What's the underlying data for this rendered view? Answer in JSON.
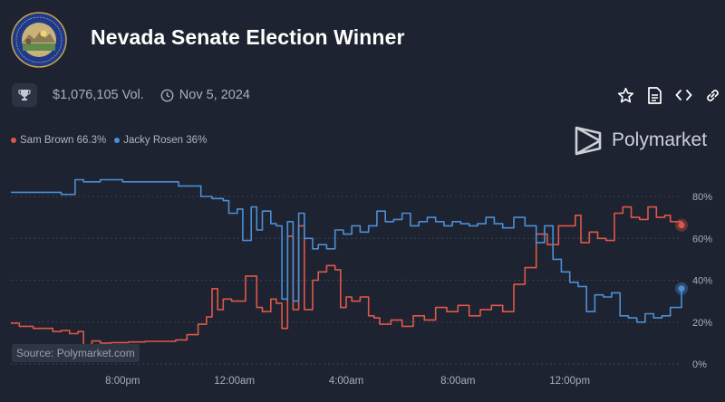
{
  "header": {
    "title": "Nevada Senate Election Winner",
    "seal_icon": "nevada-state-seal-icon",
    "volume": "$1,076,105 Vol.",
    "date": "Nov 5, 2024"
  },
  "actions": [
    {
      "name": "star-icon",
      "label": "Bookmark"
    },
    {
      "name": "document-icon",
      "label": "Rules"
    },
    {
      "name": "code-icon",
      "label": "Embed"
    },
    {
      "name": "link-icon",
      "label": "Copy link"
    }
  ],
  "brand": {
    "name": "Polymarket",
    "icon": "polymarket-logo-icon"
  },
  "source": "Source: Polymarket.com",
  "colors": {
    "background": "#1d2330",
    "red": "#e0574a",
    "blue": "#4c8fd6",
    "grid": "#3a4150",
    "axis_text": "#a9aebb"
  },
  "chart_data": {
    "type": "line",
    "title": "Nevada Senate Election Winner",
    "xlabel": "",
    "ylabel": "",
    "ylim": [
      0,
      80
    ],
    "yticks": [
      0,
      20,
      40,
      60,
      80
    ],
    "ytick_labels": [
      "0%",
      "20%",
      "40%",
      "60%",
      "80%"
    ],
    "xlim": [
      0,
      24
    ],
    "xticks": [
      4,
      8,
      12,
      16,
      20
    ],
    "xtick_labels": [
      "8:00pm",
      "12:00am",
      "4:00am",
      "8:00am",
      "12:00pm"
    ],
    "x_unit": "hours since 4:00pm",
    "series": [
      {
        "name": "Sam Brown",
        "legend": "Sam Brown 66.3%",
        "color": "#e0574a",
        "final": 66.3,
        "x": [
          0,
          0.3,
          0.8,
          1.5,
          1.8,
          2.1,
          2.4,
          2.6,
          2.9,
          3.2,
          3.6,
          4.2,
          4.8,
          5.2,
          5.9,
          6.3,
          6.7,
          7.0,
          7.2,
          7.4,
          7.6,
          7.9,
          8.4,
          8.8,
          9.0,
          9.3,
          9.5,
          9.7,
          9.9,
          10.1,
          10.3,
          10.5,
          10.8,
          11.0,
          11.3,
          11.6,
          11.8,
          12.0,
          12.2,
          12.5,
          12.8,
          13.0,
          13.2,
          13.6,
          14.0,
          14.4,
          14.8,
          15.2,
          15.6,
          16.0,
          16.4,
          16.8,
          17.2,
          17.6,
          18.0,
          18.4,
          18.8,
          19.2,
          19.6,
          19.9,
          20.2,
          20.4,
          20.7,
          21.0,
          21.3,
          21.6,
          21.9,
          22.2,
          22.5,
          22.8,
          23.1,
          23.4,
          23.6,
          24.0
        ],
        "y": [
          19.5,
          18,
          17,
          15.5,
          16,
          14.5,
          15.5,
          8.5,
          11,
          10,
          10.2,
          10.5,
          10.8,
          10.8,
          11.5,
          14,
          19,
          22.5,
          36,
          26,
          31,
          30,
          42,
          27,
          25,
          31,
          29,
          17,
          61,
          26,
          66,
          26,
          40,
          44,
          47,
          45,
          27,
          32,
          30,
          32,
          23,
          22,
          19,
          21,
          18,
          23,
          21,
          27,
          25,
          28,
          23,
          26,
          28,
          25,
          38,
          46,
          62,
          57,
          66,
          66,
          71,
          58,
          63,
          60,
          59,
          72,
          75,
          70,
          69,
          75,
          70,
          71,
          68,
          66.3
        ]
      },
      {
        "name": "Jacky Rosen",
        "legend": "Jacky Rosen 36%",
        "color": "#4c8fd6",
        "final": 36,
        "x": [
          0,
          0.8,
          1.8,
          2.3,
          2.6,
          3.2,
          4.0,
          5.0,
          6.0,
          6.8,
          7.2,
          7.6,
          7.8,
          8.1,
          8.3,
          8.6,
          8.8,
          9.0,
          9.3,
          9.5,
          9.7,
          9.9,
          10.1,
          10.3,
          10.5,
          10.8,
          11.0,
          11.3,
          11.6,
          11.9,
          12.2,
          12.5,
          12.8,
          13.1,
          13.4,
          13.7,
          14.0,
          14.3,
          14.6,
          14.9,
          15.2,
          15.5,
          15.8,
          16.1,
          16.4,
          16.7,
          17.0,
          17.3,
          17.6,
          18.0,
          18.4,
          18.8,
          19.1,
          19.4,
          19.7,
          20.0,
          20.3,
          20.6,
          20.9,
          21.2,
          21.5,
          21.8,
          22.1,
          22.4,
          22.7,
          23.0,
          23.3,
          23.6,
          24.0
        ],
        "y": [
          82,
          82,
          81,
          88,
          87,
          88,
          87,
          87,
          85,
          80,
          79,
          78,
          72,
          74,
          59,
          75,
          64,
          73,
          67,
          66,
          31,
          68,
          30,
          72,
          60,
          55,
          57,
          55,
          64,
          62,
          66,
          63,
          66,
          73,
          68,
          69,
          72,
          66,
          68,
          70,
          68,
          66,
          68,
          67,
          66,
          67,
          70,
          67,
          65,
          70,
          66,
          58,
          66,
          50,
          44,
          39,
          37,
          25,
          33,
          32,
          34,
          23,
          22,
          20,
          24,
          22,
          23,
          27,
          36
        ]
      }
    ]
  }
}
